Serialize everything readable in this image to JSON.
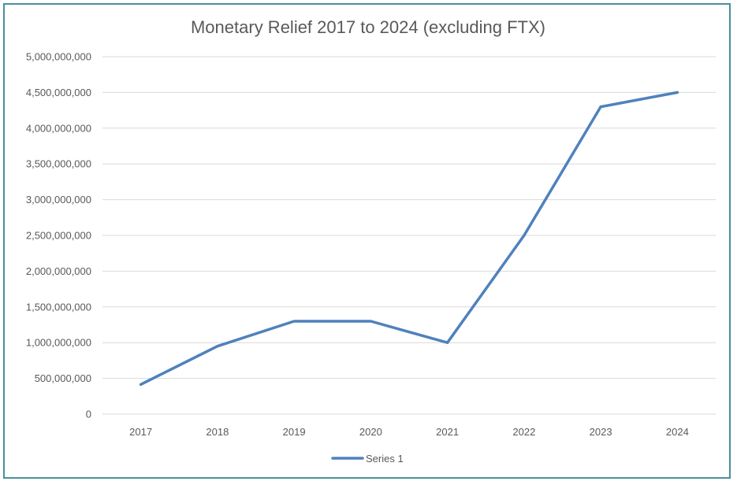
{
  "chart_data": {
    "type": "line",
    "title": "Monetary Relief 2017 to 2024 (excluding FTX)",
    "xlabel": "",
    "ylabel": "",
    "categories": [
      "2017",
      "2018",
      "2019",
      "2020",
      "2021",
      "2022",
      "2023",
      "2024"
    ],
    "series": [
      {
        "name": "Series 1",
        "values": [
          415000000,
          950000000,
          1300000000,
          1300000000,
          1000000000,
          2500000000,
          4300000000,
          4500000000
        ],
        "color": "#4f81bd"
      }
    ],
    "ylim": [
      0,
      5000000000
    ],
    "yticks": [
      0,
      500000000,
      1000000000,
      1500000000,
      2000000000,
      2500000000,
      3000000000,
      3500000000,
      4000000000,
      4500000000,
      5000000000
    ],
    "ytick_labels": [
      "0",
      "500,000,000",
      "1,000,000,000",
      "1,500,000,000",
      "2,000,000,000",
      "2,500,000,000",
      "3,000,000,000",
      "3,500,000,000",
      "4,000,000,000",
      "4,500,000,000",
      "5,000,000,000"
    ],
    "grid": true,
    "legend_position": "bottom",
    "frame_color": "#4a8f9c"
  }
}
